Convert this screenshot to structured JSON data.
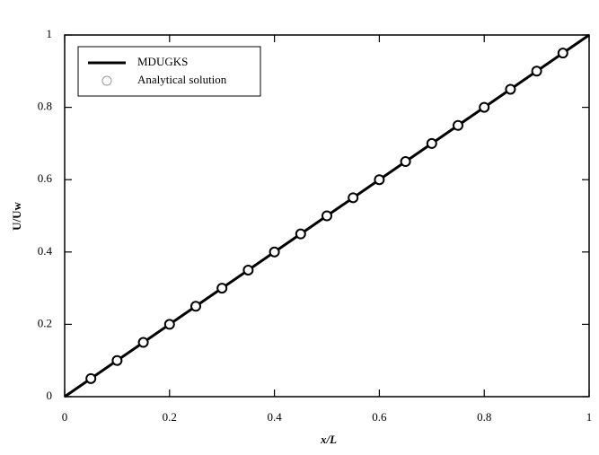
{
  "chart_data": {
    "type": "line",
    "xlabel": "x/L",
    "ylabel": "U/Uw",
    "xlim": [
      0,
      1
    ],
    "ylim": [
      0,
      1
    ],
    "xticks": [
      0,
      0.2,
      0.4,
      0.6,
      0.8,
      1
    ],
    "yticks": [
      0,
      0.2,
      0.4,
      0.6,
      0.8,
      1
    ],
    "legend": "upper left",
    "series": [
      {
        "name": "MDUGKS",
        "style": "line",
        "color": "#000000",
        "x": [
          0,
          1
        ],
        "values": [
          0,
          1
        ]
      },
      {
        "name": "Analytical solution",
        "style": "marker",
        "color": "#000000",
        "x": [
          0.05,
          0.1,
          0.15,
          0.2,
          0.25,
          0.3,
          0.35,
          0.4,
          0.45,
          0.5,
          0.55,
          0.6,
          0.65,
          0.7,
          0.75,
          0.8,
          0.85,
          0.9,
          0.95
        ],
        "values": [
          0.05,
          0.1,
          0.15,
          0.2,
          0.25,
          0.3,
          0.35,
          0.4,
          0.45,
          0.5,
          0.55,
          0.6,
          0.65,
          0.7,
          0.75,
          0.8,
          0.85,
          0.9,
          0.95
        ]
      }
    ]
  }
}
